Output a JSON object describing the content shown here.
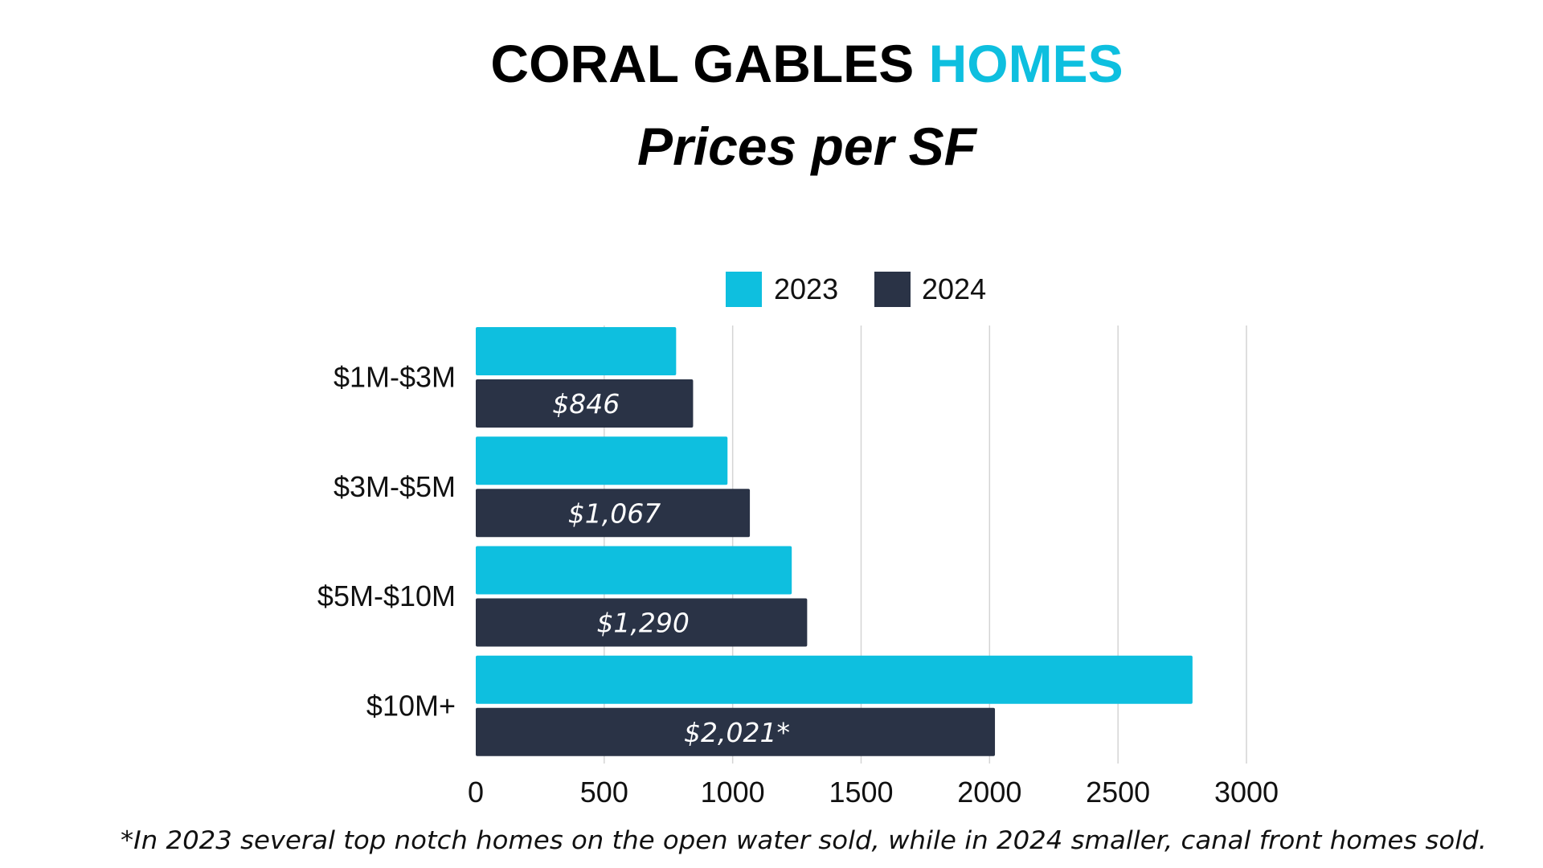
{
  "colors": {
    "series_2023": "#0ebfdf",
    "series_2024": "#2a3346",
    "title": "#000000",
    "title_accent": "#0ebfdf",
    "grid": "#d4d4d4",
    "text": "#111111",
    "value_label": "#ffffff"
  },
  "chart_data": {
    "type": "bar",
    "orientation": "horizontal",
    "title_part1": "CORAL GABLES ",
    "title_part2": "HOMES",
    "subtitle": "Prices per SF",
    "categories": [
      "$1M-$3M",
      "$3M-$5M",
      "$5M-$10M",
      "$10M+"
    ],
    "series": [
      {
        "name": "2023",
        "values": [
          780,
          980,
          1230,
          2790
        ],
        "labels": [
          "",
          "",
          "",
          ""
        ]
      },
      {
        "name": "2024",
        "values": [
          846,
          1067,
          1290,
          2021
        ],
        "labels": [
          "$846",
          "$1,067",
          "$1,290",
          "$2,021*"
        ]
      }
    ],
    "xlim": [
      0,
      3000
    ],
    "xticks": [
      0,
      500,
      1000,
      1500,
      2000,
      2500,
      3000
    ],
    "grid": true,
    "legend_position": "top",
    "footnote": "*In 2023 several top notch homes on the open water sold, while in 2024 smaller, canal front homes sold."
  }
}
